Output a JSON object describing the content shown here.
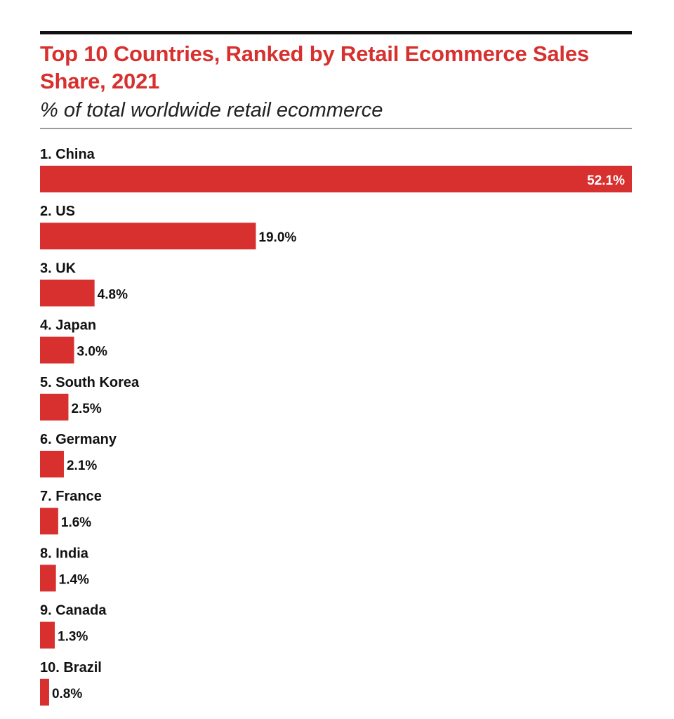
{
  "chart_data": {
    "type": "bar",
    "orientation": "horizontal",
    "title": "Top 10 Countries, Ranked by Retail Ecommerce Sales Share, 2021",
    "subtitle": "% of total worldwide retail ecommerce",
    "categories": [
      "1. China",
      "2. US",
      "3. UK",
      "4. Japan",
      "5. South Korea",
      "6. Germany",
      "7. France",
      "8. India",
      "9. Canada",
      "10. Brazil"
    ],
    "values": [
      52.1,
      19.0,
      4.8,
      3.0,
      2.5,
      2.1,
      1.6,
      1.4,
      1.3,
      0.8
    ],
    "value_labels": [
      "52.1%",
      "19.0%",
      "4.8%",
      "3.0%",
      "2.5%",
      "2.1%",
      "1.6%",
      "1.4%",
      "1.3%",
      "0.8%"
    ],
    "xlim": [
      0,
      52.1
    ],
    "grid": false,
    "legend": "none"
  },
  "colors": {
    "bar": "#d7302e",
    "title": "#d7302e",
    "text": "#111111",
    "label_inside": "#ffffff"
  }
}
